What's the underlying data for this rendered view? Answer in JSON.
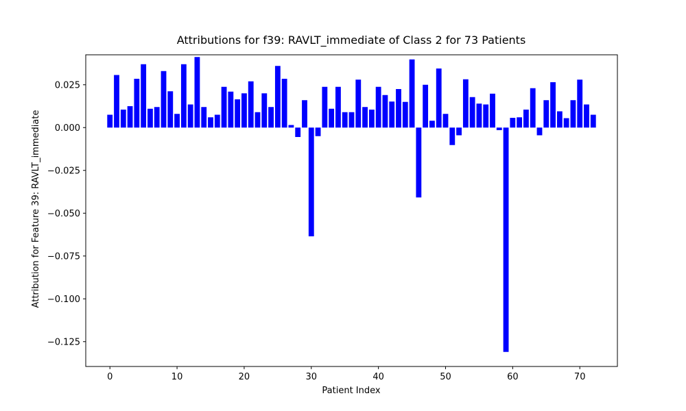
{
  "chart_data": {
    "type": "bar",
    "title": "Attributions for f39: RAVLT_immediate of Class 2 for 73 Patients",
    "xlabel": "Patient Index",
    "ylabel": "Attribution for Feature 39: RAVLT_immediate",
    "bar_color": "#0000ff",
    "xlim": [
      -3.6,
      75.6
    ],
    "ylim": [
      -0.1395,
      0.0425
    ],
    "xticks": [
      0,
      10,
      20,
      30,
      40,
      50,
      60,
      70
    ],
    "xtick_labels": [
      "0",
      "10",
      "20",
      "30",
      "40",
      "50",
      "60",
      "70"
    ],
    "yticks": [
      -0.125,
      -0.1,
      -0.075,
      -0.05,
      -0.025,
      0.0,
      0.025
    ],
    "ytick_labels": [
      "−0.125",
      "−0.100",
      "−0.075",
      "−0.050",
      "−0.025",
      "0.000",
      "0.025"
    ],
    "grid": false,
    "x": [
      0,
      1,
      2,
      3,
      4,
      5,
      6,
      7,
      8,
      9,
      10,
      11,
      12,
      13,
      14,
      15,
      16,
      17,
      18,
      19,
      20,
      21,
      22,
      23,
      24,
      25,
      26,
      27,
      28,
      29,
      30,
      31,
      32,
      33,
      34,
      35,
      36,
      37,
      38,
      39,
      40,
      41,
      42,
      43,
      44,
      45,
      46,
      47,
      48,
      49,
      50,
      51,
      52,
      53,
      54,
      55,
      56,
      57,
      58,
      59,
      60,
      61,
      62,
      63,
      64,
      65,
      66,
      67,
      68,
      69,
      70,
      71,
      72
    ],
    "values": [
      0.0075,
      0.0307,
      0.0105,
      0.0125,
      0.0285,
      0.037,
      0.011,
      0.012,
      0.033,
      0.0212,
      0.008,
      0.037,
      0.0135,
      0.0412,
      0.012,
      0.006,
      0.0075,
      0.0238,
      0.021,
      0.0165,
      0.02,
      0.027,
      0.009,
      0.02,
      0.012,
      0.036,
      0.0285,
      0.0015,
      -0.0055,
      0.016,
      -0.0635,
      -0.005,
      0.0238,
      0.011,
      0.0238,
      0.009,
      0.009,
      0.028,
      0.012,
      0.0105,
      0.0238,
      0.019,
      0.0152,
      0.0225,
      0.015,
      0.0398,
      -0.0408,
      0.025,
      0.004,
      0.0345,
      0.008,
      -0.0102,
      -0.0045,
      0.0282,
      0.0178,
      0.014,
      0.0135,
      0.0198,
      -0.0015,
      -0.131,
      0.0057,
      0.006,
      0.0105,
      0.023,
      -0.0045,
      0.016,
      0.0265,
      0.0095,
      0.0055,
      0.016,
      0.028,
      0.0135,
      0.0075
    ]
  }
}
